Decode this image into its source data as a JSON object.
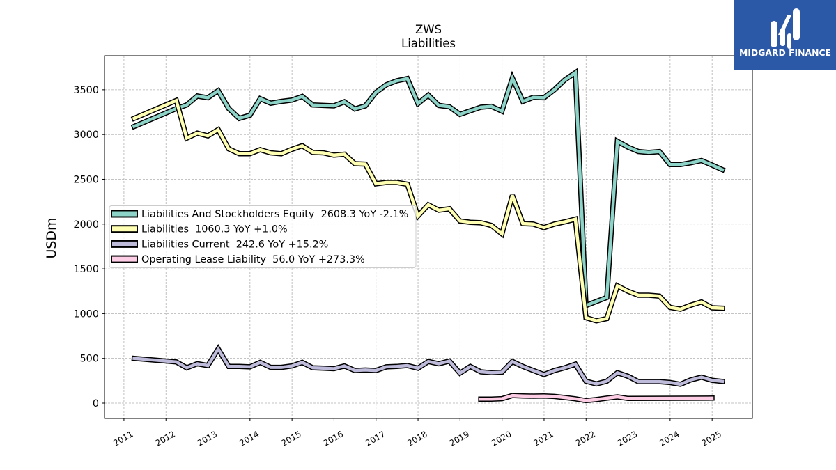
{
  "logo": {
    "text": "MIDGARD FINANCE",
    "background": "#2b59a8",
    "icon": "midgard-logo-icon"
  },
  "chart_data": {
    "type": "line",
    "title": "ZWS",
    "subtitle": "Liabilities",
    "ylabel": "USDm",
    "x": [
      "2011-03-31",
      "2012-03-31",
      "2012-06-30",
      "2012-09-30",
      "2012-12-31",
      "2013-03-31",
      "2013-06-30",
      "2013-09-30",
      "2013-12-31",
      "2014-03-31",
      "2014-06-30",
      "2014-09-30",
      "2014-12-31",
      "2015-03-31",
      "2015-06-30",
      "2015-09-30",
      "2015-12-31",
      "2016-03-31",
      "2016-06-30",
      "2016-09-30",
      "2016-12-31",
      "2017-03-31",
      "2017-06-30",
      "2017-09-30",
      "2017-12-31",
      "2018-03-31",
      "2018-06-30",
      "2018-09-30",
      "2018-12-31",
      "2019-03-31",
      "2019-06-30",
      "2019-09-30",
      "2019-12-31",
      "2020-03-31",
      "2020-06-30",
      "2020-09-30",
      "2020-12-31",
      "2021-03-31",
      "2021-06-30",
      "2021-09-30",
      "2021-12-31",
      "2022-03-31",
      "2022-06-30",
      "2022-09-30",
      "2022-12-31",
      "2023-03-31",
      "2023-06-30",
      "2023-09-30",
      "2023-12-31",
      "2024-03-31",
      "2024-06-30",
      "2024-09-30",
      "2024-12-31",
      "2025-03-31"
    ],
    "series": [
      {
        "name": "Liabilities And Stockholders Equity",
        "latest_label": "2608.3",
        "yoy_label": "YoY -2.1%",
        "color": "#8dd3c7",
        "values": [
          3090,
          3290,
          3330,
          3430,
          3410,
          3490,
          3290,
          3180,
          3215,
          3400,
          3350,
          3370,
          3385,
          3425,
          3330,
          3325,
          3320,
          3365,
          3285,
          3320,
          3470,
          3555,
          3600,
          3625,
          3345,
          3440,
          3325,
          3310,
          3225,
          3265,
          3305,
          3315,
          3260,
          3630,
          3370,
          3415,
          3410,
          3500,
          3610,
          3690,
          1090,
          1135,
          1180,
          2925,
          2860,
          2810,
          2800,
          2810,
          2665,
          2665,
          2685,
          2710,
          2660,
          2608.3
        ]
      },
      {
        "name": "Liabilities",
        "latest_label": "1060.3",
        "yoy_label": "YoY +1.0%",
        "color": "#ffffb3",
        "values": [
          3180,
          3380,
          2960,
          3015,
          2985,
          3055,
          2840,
          2785,
          2785,
          2830,
          2795,
          2785,
          2835,
          2875,
          2800,
          2795,
          2770,
          2780,
          2675,
          2670,
          2450,
          2465,
          2465,
          2445,
          2090,
          2215,
          2155,
          2170,
          2035,
          2020,
          2015,
          1985,
          1890,
          2320,
          2005,
          2000,
          1960,
          2000,
          2025,
          2055,
          955,
          920,
          945,
          1310,
          1250,
          1205,
          1205,
          1195,
          1070,
          1050,
          1095,
          1130,
          1065,
          1060.3
        ]
      },
      {
        "name": "Liabilities Current",
        "latest_label": "242.6",
        "yoy_label": "YoY +15.2%",
        "color": "#bebada",
        "values": [
          500,
          460,
          395,
          440,
          420,
          605,
          410,
          410,
          405,
          455,
          400,
          400,
          415,
          455,
          395,
          390,
          385,
          415,
          365,
          370,
          365,
          405,
          410,
          420,
          390,
          465,
          440,
          470,
          335,
          410,
          350,
          340,
          345,
          465,
          410,
          365,
          320,
          365,
          395,
          435,
          245,
          215,
          245,
          340,
          300,
          240,
          240,
          240,
          230,
          211,
          260,
          290,
          255,
          242.6
        ]
      },
      {
        "name": "Operating Lease Liability",
        "latest_label": "56.0",
        "yoy_label": "YoY +273.3%",
        "color": "#fccde5",
        "values": [
          null,
          null,
          null,
          null,
          null,
          null,
          null,
          null,
          null,
          null,
          null,
          null,
          null,
          null,
          null,
          null,
          null,
          null,
          null,
          null,
          null,
          null,
          null,
          null,
          null,
          null,
          null,
          null,
          null,
          null,
          45,
          45,
          50,
          85,
          80,
          78,
          80,
          75,
          62,
          48,
          28,
          40,
          55,
          70,
          52,
          null,
          null,
          null,
          null,
          null,
          null,
          null,
          56.0,
          null
        ]
      }
    ],
    "xlim": [
      "2010-07-16",
      "2025-12-17"
    ],
    "ylim": [
      -171,
      3880
    ],
    "xticks": [
      "2011",
      "2012",
      "2013",
      "2014",
      "2015",
      "2016",
      "2017",
      "2018",
      "2019",
      "2020",
      "2021",
      "2022",
      "2023",
      "2024",
      "2025"
    ],
    "yticks": [
      0,
      500,
      1000,
      1500,
      2000,
      2500,
      3000,
      3500
    ],
    "grid": true,
    "legend_position": "center-left"
  }
}
